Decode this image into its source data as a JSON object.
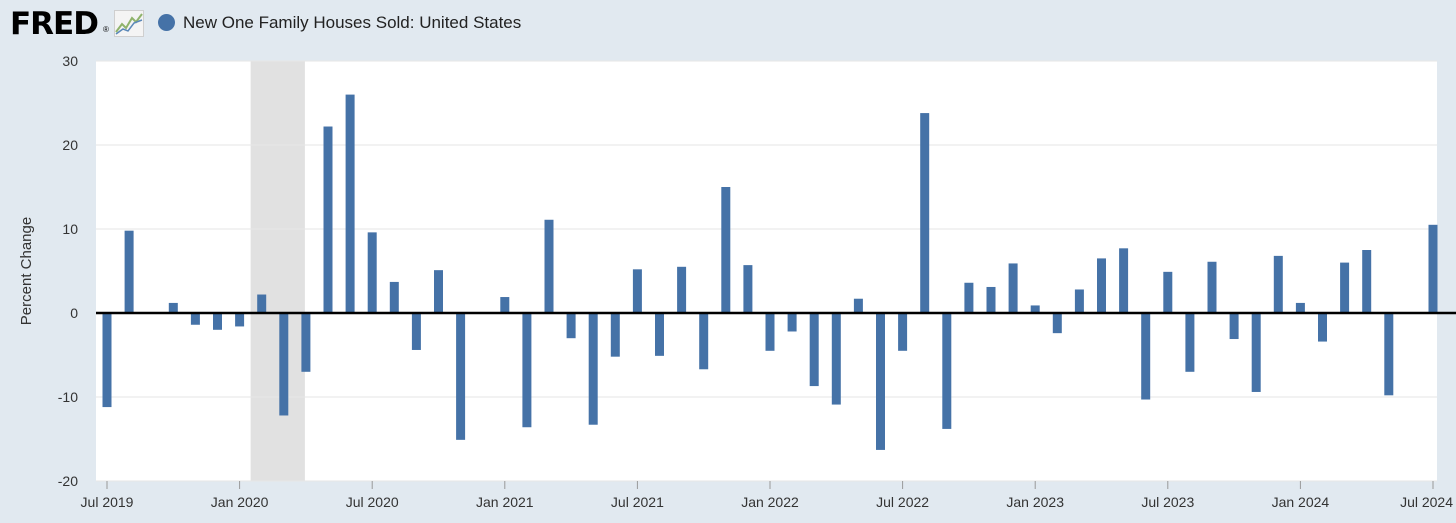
{
  "header": {
    "logo_text": "FRED",
    "logo_registered": "®",
    "legend_label": "New One Family Houses Sold: United States"
  },
  "colors": {
    "background": "#e1e9f0",
    "plot_background": "#ffffff",
    "bar": "#4572a7",
    "recession": "#e1e1e1",
    "gridline": "#e6e6e6",
    "zero_line": "#000000"
  },
  "chart_data": {
    "type": "bar",
    "ylabel": "Percent Change",
    "ylim": [
      -20,
      30
    ],
    "y_ticks": [
      -20,
      -10,
      0,
      10,
      20,
      30
    ],
    "y_tick_labels": [
      "-20",
      "-10",
      "0",
      "10",
      "20",
      "30"
    ],
    "x_tick_labels": [
      "Jul 2019",
      "Jan 2020",
      "Jul 2020",
      "Jan 2021",
      "Jul 2021",
      "Jan 2022",
      "Jul 2022",
      "Jan 2023",
      "Jul 2023",
      "Jan 2024",
      "Jul 2024"
    ],
    "x_tick_month_index": [
      0,
      6,
      12,
      18,
      24,
      30,
      36,
      42,
      48,
      54,
      60
    ],
    "grid": true,
    "recession_shading": {
      "start": "Feb 2020",
      "end": "Apr 2020"
    },
    "series": [
      {
        "name": "New One Family Houses Sold: United States",
        "categories": [
          "Jul 2019",
          "Aug 2019",
          "Sep 2019",
          "Oct 2019",
          "Nov 2019",
          "Dec 2019",
          "Jan 2020",
          "Feb 2020",
          "Mar 2020",
          "Apr 2020",
          "May 2020",
          "Jun 2020",
          "Jul 2020",
          "Aug 2020",
          "Sep 2020",
          "Oct 2020",
          "Nov 2020",
          "Dec 2020",
          "Jan 2021",
          "Feb 2021",
          "Mar 2021",
          "Apr 2021",
          "May 2021",
          "Jun 2021",
          "Jul 2021",
          "Aug 2021",
          "Sep 2021",
          "Oct 2021",
          "Nov 2021",
          "Dec 2021",
          "Jan 2022",
          "Feb 2022",
          "Mar 2022",
          "Apr 2022",
          "May 2022",
          "Jun 2022",
          "Jul 2022",
          "Aug 2022",
          "Sep 2022",
          "Oct 2022",
          "Nov 2022",
          "Dec 2022",
          "Jan 2023",
          "Feb 2023",
          "Mar 2023",
          "Apr 2023",
          "May 2023",
          "Jun 2023",
          "Jul 2023",
          "Aug 2023",
          "Sep 2023",
          "Oct 2023",
          "Nov 2023",
          "Dec 2023",
          "Jan 2024",
          "Feb 2024",
          "Mar 2024",
          "Apr 2024",
          "May 2024",
          "Jun 2024",
          "Jul 2024"
        ],
        "values": [
          -11.2,
          9.8,
          0,
          1.2,
          -1.4,
          -2,
          -1.6,
          2.2,
          -12.2,
          -7,
          22.2,
          26,
          9.6,
          3.7,
          -4.4,
          5.1,
          -15.1,
          0,
          1.9,
          -13.6,
          11.1,
          -3,
          -13.3,
          -5.2,
          5.2,
          -5.1,
          5.5,
          -6.7,
          15,
          5.7,
          -4.5,
          -2.2,
          -8.7,
          -10.9,
          1.7,
          -16.3,
          -4.5,
          23.8,
          -13.8,
          3.6,
          3.1,
          5.9,
          0.9,
          -2.4,
          2.8,
          6.5,
          7.7,
          -10.3,
          4.9,
          -7,
          6.1,
          -3.1,
          -9.4,
          6.8,
          1.2,
          -3.4,
          6,
          7.5,
          -9.8,
          0,
          10.5
        ]
      }
    ]
  }
}
